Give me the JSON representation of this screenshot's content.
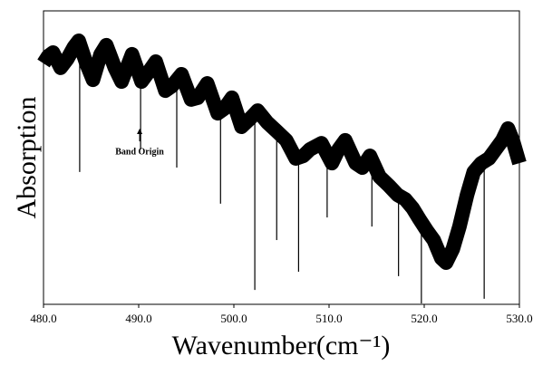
{
  "chart_data": {
    "type": "line",
    "x_label": "Wavenumber(cm⁻¹)",
    "y_label": "Absorption",
    "xlim": [
      480,
      530
    ],
    "ylim": [
      0,
      1
    ],
    "xticks": [
      {
        "value": 480,
        "label": "480.0"
      },
      {
        "value": 490,
        "label": "490.0"
      },
      {
        "value": 500,
        "label": "500.0"
      },
      {
        "value": 510,
        "label": "510.0"
      },
      {
        "value": 520,
        "label": "520.0"
      },
      {
        "value": 530,
        "label": "530.0"
      }
    ],
    "color": "#000000",
    "x": [
      480.0,
      480.5,
      481.0,
      481.8,
      482.5,
      483.2,
      483.7,
      484.5,
      485.2,
      486.0,
      486.6,
      487.5,
      488.2,
      489.3,
      490.3,
      491.0,
      491.8,
      492.8,
      493.5,
      494.5,
      495.5,
      496.2,
      497.2,
      498.3,
      499.0,
      499.8,
      500.8,
      501.8,
      502.5,
      503.5,
      504.5,
      505.5,
      506.5,
      507.3,
      508.0,
      509.2,
      510.3,
      511.0,
      511.7,
      512.8,
      513.5,
      514.3,
      515.3,
      516.3,
      517.2,
      518.0,
      518.8,
      519.5,
      520.3,
      521.0,
      521.8,
      522.3,
      523.0,
      523.7,
      524.5,
      525.2,
      526.0,
      526.8,
      527.5,
      528.2,
      528.8,
      529.3,
      530.0
    ],
    "values": [
      0.821,
      0.846,
      0.858,
      0.806,
      0.836,
      0.877,
      0.898,
      0.821,
      0.765,
      0.852,
      0.883,
      0.806,
      0.759,
      0.852,
      0.759,
      0.79,
      0.827,
      0.728,
      0.744,
      0.784,
      0.698,
      0.704,
      0.753,
      0.651,
      0.667,
      0.704,
      0.605,
      0.636,
      0.66,
      0.62,
      0.59,
      0.559,
      0.497,
      0.506,
      0.528,
      0.549,
      0.481,
      0.528,
      0.559,
      0.481,
      0.466,
      0.506,
      0.435,
      0.404,
      0.373,
      0.358,
      0.327,
      0.29,
      0.25,
      0.219,
      0.157,
      0.142,
      0.188,
      0.265,
      0.373,
      0.451,
      0.481,
      0.497,
      0.528,
      0.559,
      0.599,
      0.559,
      0.481
    ],
    "absorption_lines": {
      "x": [
        483.8,
        490.2,
        494.0,
        498.6,
        502.2,
        504.5,
        506.8,
        509.8,
        514.5,
        517.3,
        519.7,
        526.3
      ],
      "values": [
        0.451,
        0.528,
        0.466,
        0.343,
        0.049,
        0.219,
        0.111,
        0.296,
        0.265,
        0.096,
        0.003,
        0.019
      ]
    },
    "annotation": {
      "text": "Band Origin",
      "x": 490.1
    }
  }
}
